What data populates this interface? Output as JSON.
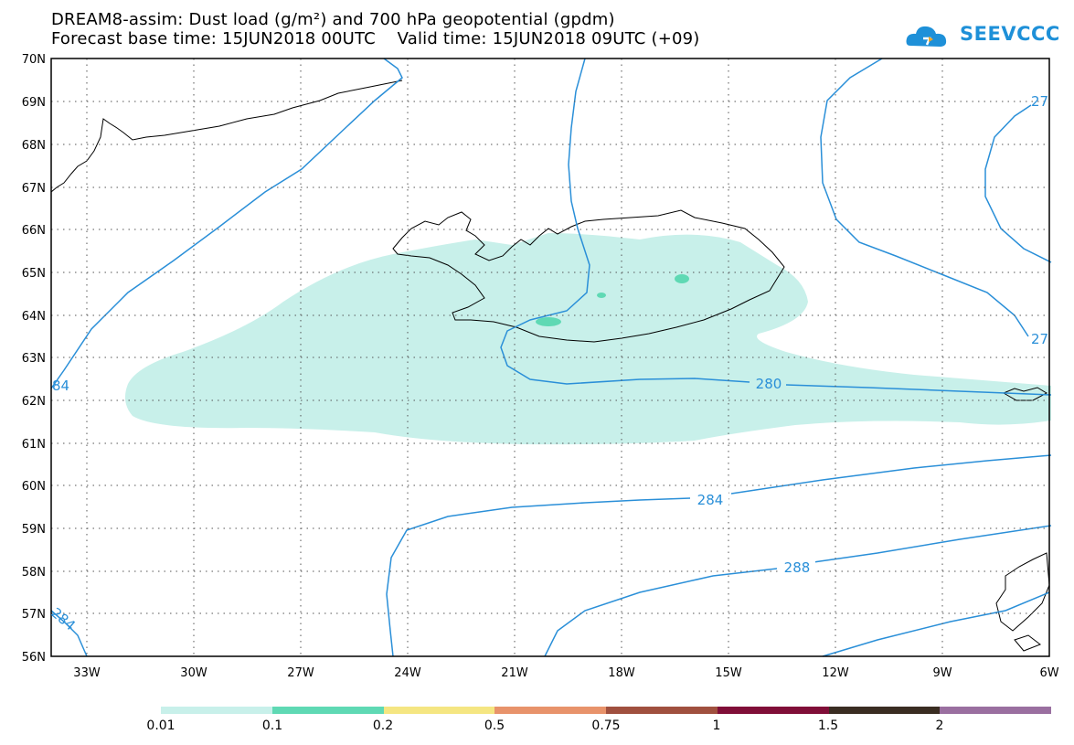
{
  "header": {
    "title_line1": "DREAM8-assim: Dust load (g/m²) and 700 hPa geopotential (gpdm)",
    "title_line2": "Forecast base time: 15JUN2018 00UTC    Valid time: 15JUN2018 09UTC (+09)",
    "logo_text": "SEEVCCC"
  },
  "map": {
    "lat_labels": [
      "70N",
      "69N",
      "68N",
      "67N",
      "66N",
      "65N",
      "64N",
      "63N",
      "62N",
      "61N",
      "60N",
      "59N",
      "58N",
      "57N",
      "56N"
    ],
    "lon_labels": [
      "33W",
      "30W",
      "27W",
      "24W",
      "21W",
      "18W",
      "15W",
      "12W",
      "9W",
      "6W"
    ],
    "contour_labels": [
      {
        "text": "280"
      },
      {
        "text": "284"
      },
      {
        "text": "288"
      },
      {
        "text": "284"
      },
      {
        "text": "84"
      },
      {
        "text": "27"
      },
      {
        "text": "27"
      }
    ],
    "colors": {
      "dust_low": "#c8f0ea",
      "dust_mid": "#5fd9b4",
      "contour": "#2a8fd8",
      "coast": "#000000"
    }
  },
  "legend": {
    "labels": [
      "0.01",
      "0.1",
      "0.2",
      "0.5",
      "0.75",
      "1",
      "1.5",
      "2"
    ],
    "colors": [
      "#c8f0ea",
      "#5fd9b4",
      "#f5e682",
      "#e8936b",
      "#a0503f",
      "#800e38",
      "#3a2d22",
      "#9a6fa0"
    ]
  }
}
